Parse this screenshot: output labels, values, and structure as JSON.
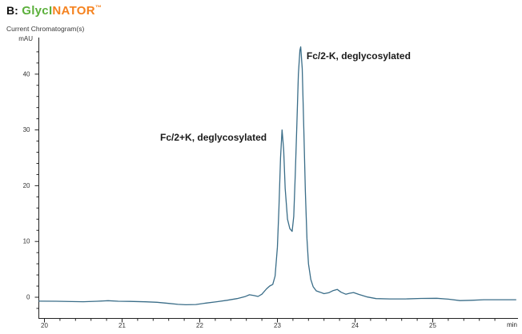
{
  "header": {
    "prefix": "B:",
    "brand_green": "GlycI",
    "brand_orange": "NATOR",
    "trademark": "™"
  },
  "panel_title": "Current Chromatogram(s)",
  "colors": {
    "brand_green": "#5cb03c",
    "brand_orange": "#f5821f",
    "trace": "#3a6d88",
    "axis": "#222222",
    "tick_label": "#333333"
  },
  "chart_data": {
    "type": "line",
    "title": "Current Chromatogram(s)",
    "xlabel": "min",
    "ylabel": "mAU",
    "x_range": [
      19.93,
      26.1
    ],
    "y_range": [
      -3.8,
      46.6
    ],
    "x_major_ticks": [
      20,
      21,
      22,
      23,
      24,
      25
    ],
    "x_minor_step": 0.2,
    "x_minor_min": 20.0,
    "x_minor_max": 25.8,
    "y_major_ticks": [
      0,
      10,
      20,
      30,
      40
    ],
    "y_minor_step": 2,
    "y_minor_min": -2,
    "y_minor_max": 44,
    "grid": false,
    "legend": "none",
    "line_color": "#3a6d88",
    "series": [
      {
        "name": "chromatogram",
        "points": [
          [
            19.93,
            -0.7
          ],
          [
            20.15,
            -0.72
          ],
          [
            20.35,
            -0.78
          ],
          [
            20.5,
            -0.8
          ],
          [
            20.68,
            -0.72
          ],
          [
            20.82,
            -0.62
          ],
          [
            20.95,
            -0.72
          ],
          [
            21.1,
            -0.75
          ],
          [
            21.3,
            -0.82
          ],
          [
            21.45,
            -0.9
          ],
          [
            21.6,
            -1.1
          ],
          [
            21.72,
            -1.28
          ],
          [
            21.82,
            -1.35
          ],
          [
            21.95,
            -1.3
          ],
          [
            22.08,
            -1.05
          ],
          [
            22.22,
            -0.8
          ],
          [
            22.35,
            -0.55
          ],
          [
            22.48,
            -0.25
          ],
          [
            22.58,
            0.1
          ],
          [
            22.64,
            0.45
          ],
          [
            22.7,
            0.3
          ],
          [
            22.75,
            0.15
          ],
          [
            22.8,
            0.55
          ],
          [
            22.86,
            1.5
          ],
          [
            22.9,
            2.0
          ],
          [
            22.94,
            2.3
          ],
          [
            22.97,
            3.8
          ],
          [
            23.0,
            9
          ],
          [
            23.02,
            16
          ],
          [
            23.04,
            25
          ],
          [
            23.06,
            30
          ],
          [
            23.08,
            26.5
          ],
          [
            23.1,
            19.5
          ],
          [
            23.13,
            14
          ],
          [
            23.16,
            12.3
          ],
          [
            23.19,
            11.8
          ],
          [
            23.21,
            14.5
          ],
          [
            23.23,
            22
          ],
          [
            23.25,
            31
          ],
          [
            23.27,
            40
          ],
          [
            23.29,
            44.3
          ],
          [
            23.3,
            44.9
          ],
          [
            23.32,
            41
          ],
          [
            23.34,
            30
          ],
          [
            23.36,
            19
          ],
          [
            23.38,
            10.5
          ],
          [
            23.4,
            6
          ],
          [
            23.43,
            3.2
          ],
          [
            23.46,
            1.9
          ],
          [
            23.5,
            1.15
          ],
          [
            23.55,
            0.9
          ],
          [
            23.6,
            0.65
          ],
          [
            23.66,
            0.8
          ],
          [
            23.72,
            1.2
          ],
          [
            23.77,
            1.4
          ],
          [
            23.82,
            0.9
          ],
          [
            23.88,
            0.55
          ],
          [
            23.93,
            0.72
          ],
          [
            23.98,
            0.85
          ],
          [
            24.05,
            0.5
          ],
          [
            24.16,
            0.05
          ],
          [
            24.27,
            -0.25
          ],
          [
            24.45,
            -0.3
          ],
          [
            24.65,
            -0.3
          ],
          [
            24.85,
            -0.22
          ],
          [
            25.05,
            -0.18
          ],
          [
            25.2,
            -0.35
          ],
          [
            25.35,
            -0.6
          ],
          [
            25.5,
            -0.55
          ],
          [
            25.66,
            -0.45
          ],
          [
            25.85,
            -0.45
          ],
          [
            26.07,
            -0.45
          ]
        ]
      }
    ],
    "annotations": [
      {
        "text": "Fc/2+K, deglycosylated",
        "x": 21.49,
        "y": 28.7
      },
      {
        "text": "Fc/2-K, deglycosylated",
        "x": 23.375,
        "y": 43.3
      }
    ],
    "peaks": [
      {
        "label": "Fc/2+K, deglycosylated",
        "retention_time_min": 23.06,
        "height_mau": 30.0
      },
      {
        "label": "Fc/2-K, deglycosylated",
        "retention_time_min": 23.3,
        "height_mau": 44.9
      }
    ]
  }
}
